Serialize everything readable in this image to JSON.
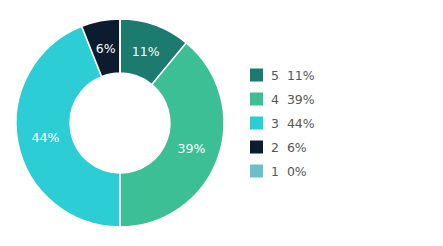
{
  "chart_data": {
    "type": "pie",
    "categories": [
      "5  11%",
      "4  39%",
      "3  44%",
      "2  6%",
      "1  0%"
    ],
    "values": [
      11,
      39,
      44,
      6,
      0.001
    ],
    "value_labels": [
      "11%",
      "39%",
      "44%",
      "6%",
      null
    ],
    "colors": [
      "#1d7a6e",
      "#3dbf95",
      "#2dcdd6",
      "#0d1b2e",
      "#6bbfc8"
    ],
    "data_labels": true,
    "legend": "right"
  }
}
